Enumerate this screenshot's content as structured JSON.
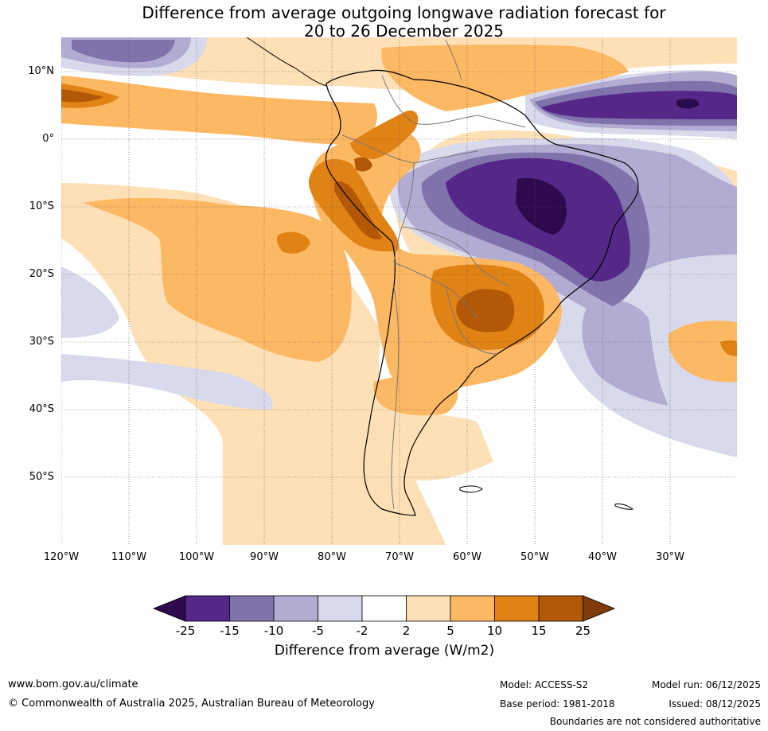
{
  "title": {
    "line1": "Difference from average outgoing longwave radiation forecast for",
    "line2": "20 to 26 December 2025"
  },
  "latitude_labels": [
    "10°N",
    "0°",
    "10°S",
    "20°S",
    "30°S",
    "40°S",
    "50°S"
  ],
  "longitude_labels": [
    "120°W",
    "110°W",
    "100°W",
    "90°W",
    "80°W",
    "70°W",
    "60°W",
    "50°W",
    "40°W",
    "30°W"
  ],
  "colorbar": {
    "ticks": [
      "-25",
      "-15",
      "-10",
      "-5",
      "-2",
      "2",
      "5",
      "10",
      "15",
      "25"
    ],
    "label": "Difference from average (W/m2)",
    "colors": [
      "#2d0a4e",
      "#542788",
      "#8073ac",
      "#b2abd2",
      "#d8daeb",
      "#ffffff",
      "#fee0b6",
      "#fdb863",
      "#e08214",
      "#b35806",
      "#7f3b08"
    ]
  },
  "footer": {
    "website": "www.bom.gov.au/climate",
    "copyright": "© Commonwealth of Australia 2025, Australian Bureau of Meteorology",
    "model": "Model: ACCESS-S2",
    "base_period": "Base period: 1981-2018",
    "model_run": "Model run: 06/12/2025",
    "issued": "Issued: 08/12/2025",
    "disclaimer": "Boundaries are not considered authoritative"
  }
}
